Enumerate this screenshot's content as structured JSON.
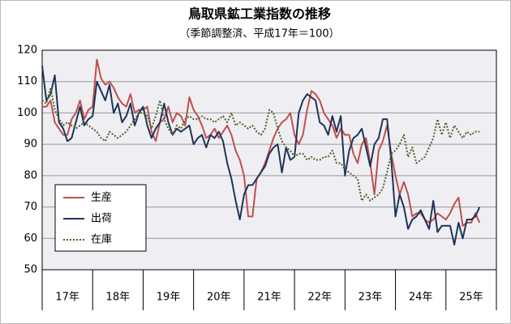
{
  "chart_data": {
    "type": "line",
    "title": "鳥取県鉱工業指数の推移",
    "subtitle": "（季節調整済、平成17年＝100）",
    "categories": [
      null,
      null,
      null,
      null,
      null,
      null,
      "17年",
      null,
      null,
      null,
      null,
      null,
      null,
      null,
      null,
      null,
      null,
      null,
      "18年",
      null,
      null,
      null,
      null,
      null,
      null,
      null,
      null,
      null,
      null,
      null,
      "19年",
      null,
      null,
      null,
      null,
      null,
      null,
      null,
      null,
      null,
      null,
      null,
      "20年",
      null,
      null,
      null,
      null,
      null,
      null,
      null,
      null,
      null,
      null,
      null,
      "21年",
      null,
      null,
      null,
      null,
      null,
      null,
      null,
      null,
      null,
      null,
      null,
      "22年",
      null,
      null,
      null,
      null,
      null,
      null,
      null,
      null,
      null,
      null,
      null,
      "23年",
      null,
      null,
      null,
      null,
      null,
      null,
      null,
      null,
      null,
      null,
      null,
      "24年",
      null,
      null,
      null,
      null,
      null,
      null,
      null,
      null,
      null,
      null,
      null,
      "25年",
      null,
      null,
      null,
      null,
      null
    ],
    "series": [
      {
        "name": "生産",
        "color": "#c0504d",
        "dash": "solid",
        "values": [
          102,
          102,
          104,
          97,
          95,
          93,
          93,
          98,
          100,
          104,
          98,
          101,
          102,
          117,
          111,
          109,
          110,
          108,
          105,
          103,
          102,
          106,
          100,
          101,
          101,
          102,
          94,
          91,
          97,
          98,
          102,
          97,
          100,
          99,
          96,
          105,
          101,
          99,
          96,
          92,
          93,
          95,
          92,
          94,
          96,
          93,
          88,
          85,
          80,
          67,
          67,
          79,
          81,
          84,
          88,
          92,
          95,
          97,
          98,
          100,
          93,
          90,
          93,
          101,
          107,
          106,
          104,
          100,
          98,
          96,
          92,
          95,
          93,
          93,
          87,
          84,
          90,
          92,
          84,
          74,
          88,
          91,
          96,
          87,
          80,
          74,
          78,
          74,
          67,
          68,
          68,
          66,
          65,
          66,
          68,
          67,
          66,
          68,
          71,
          73,
          64,
          65,
          65,
          68,
          65,
          null,
          null,
          null
        ]
      },
      {
        "name": "出荷",
        "color": "#1f3458",
        "dash": "solid",
        "values": [
          115,
          104,
          106,
          112,
          97,
          95,
          91,
          92,
          97,
          102,
          96,
          98,
          99,
          110,
          107,
          104,
          109,
          100,
          103,
          97,
          99,
          103,
          96,
          100,
          102,
          96,
          92,
          95,
          97,
          103,
          97,
          93,
          95,
          94,
          95,
          96,
          90,
          92,
          93,
          89,
          93,
          92,
          94,
          91,
          84,
          79,
          72,
          66,
          74,
          77,
          77,
          79,
          81,
          83,
          87,
          89,
          90,
          81,
          89,
          85,
          86,
          100,
          104,
          106,
          105,
          104,
          97,
          96,
          93,
          99,
          94,
          99,
          80,
          88,
          92,
          93,
          95,
          89,
          83,
          90,
          92,
          98,
          98,
          85,
          67,
          74,
          70,
          63,
          66,
          67,
          69,
          66,
          63,
          72,
          62,
          64,
          64,
          64,
          58,
          65,
          60,
          66,
          66,
          67,
          70,
          null,
          null,
          null
        ]
      },
      {
        "name": "在庫",
        "color": "#4f6228",
        "dash": "dotted",
        "values": [
          104,
          103,
          108,
          101,
          98,
          96,
          97,
          96,
          95,
          96,
          97,
          96,
          95,
          94,
          92,
          91,
          94,
          93,
          92,
          93,
          94,
          96,
          98,
          100,
          100,
          99,
          95,
          99,
          104,
          98,
          95,
          93,
          96,
          95,
          98,
          99,
          98,
          98,
          99,
          98,
          98,
          97,
          98,
          99,
          97,
          100,
          96,
          97,
          96,
          95,
          96,
          94,
          93,
          95,
          101,
          100,
          95,
          91,
          89,
          88,
          86,
          87,
          87,
          85,
          86,
          85,
          85,
          86,
          86,
          88,
          84,
          84,
          82,
          81,
          80,
          79,
          72,
          74,
          72,
          73,
          74,
          76,
          81,
          87,
          88,
          90,
          93,
          86,
          89,
          84,
          85,
          86,
          89,
          92,
          98,
          93,
          97,
          92,
          96,
          94,
          92,
          94,
          93,
          94,
          94,
          null,
          null,
          null
        ]
      }
    ],
    "ylim": [
      50,
      120
    ],
    "yticks": [
      50,
      60,
      70,
      80,
      90,
      100,
      110,
      120
    ],
    "grid": true
  }
}
